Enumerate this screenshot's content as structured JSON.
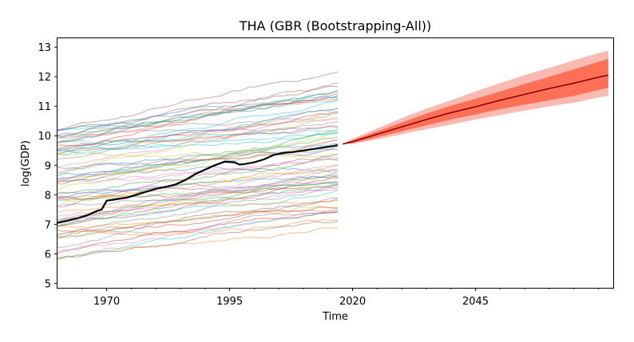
{
  "chart_data": {
    "type": "line",
    "title": "THA (GBR (Bootstrapping-All))",
    "xlabel": "Time",
    "ylabel": "log(GDP)",
    "xlim": [
      1960,
      2073
    ],
    "ylim": [
      4.85,
      13.3
    ],
    "x_ticks": [
      1970,
      1995,
      2020,
      2045
    ],
    "y_ticks": [
      5,
      6,
      7,
      8,
      9,
      10,
      11,
      12,
      13
    ],
    "grid": false,
    "background_series_note": "",
    "background_series_count": 70,
    "background_x_range": [
      1960,
      2017
    ],
    "background_start_range": [
      5.8,
      10.3
    ],
    "highlight_series": {
      "x": [
        1960,
        1962,
        1964,
        1966,
        1968,
        1969,
        1970,
        1972,
        1974,
        1976,
        1978,
        1980,
        1982,
        1984,
        1986,
        1988,
        1990,
        1992,
        1994,
        1996,
        1997,
        1998,
        2000,
        2002,
        2004,
        2006,
        2008,
        2010,
        2012,
        2014,
        2016,
        2017
      ],
      "values": [
        7.05,
        7.12,
        7.2,
        7.3,
        7.45,
        7.5,
        7.8,
        7.85,
        7.9,
        8.0,
        8.1,
        8.2,
        8.27,
        8.35,
        8.5,
        8.7,
        8.85,
        9.0,
        9.12,
        9.1,
        9.02,
        9.04,
        9.1,
        9.2,
        9.35,
        9.42,
        9.45,
        9.5,
        9.55,
        9.6,
        9.65,
        9.68
      ],
      "color": "#000000"
    },
    "forecast": {
      "x": [
        2018,
        2020,
        2025,
        2030,
        2035,
        2040,
        2045,
        2050,
        2055,
        2060,
        2065,
        2070,
        2072
      ],
      "median": [
        9.72,
        9.8,
        10.05,
        10.3,
        10.55,
        10.78,
        10.98,
        11.2,
        11.4,
        11.6,
        11.78,
        11.98,
        12.05
      ],
      "inner_lower": [
        9.72,
        9.75,
        9.95,
        10.15,
        10.35,
        10.55,
        10.72,
        10.9,
        11.05,
        11.2,
        11.35,
        11.55,
        11.62
      ],
      "inner_upper": [
        9.72,
        9.85,
        10.15,
        10.45,
        10.75,
        11.02,
        11.25,
        11.5,
        11.75,
        12.0,
        12.25,
        12.5,
        12.6
      ],
      "outer_lower": [
        9.72,
        9.72,
        9.88,
        10.05,
        10.22,
        10.38,
        10.55,
        10.7,
        10.85,
        11.0,
        11.12,
        11.3,
        11.35
      ],
      "outer_upper": [
        9.72,
        9.9,
        10.25,
        10.6,
        10.92,
        11.2,
        11.5,
        11.78,
        12.05,
        12.3,
        12.55,
        12.8,
        12.88
      ],
      "median_color": "#8b0000",
      "inner_color": "#ff6347",
      "outer_color": "#f7b3a8"
    }
  }
}
